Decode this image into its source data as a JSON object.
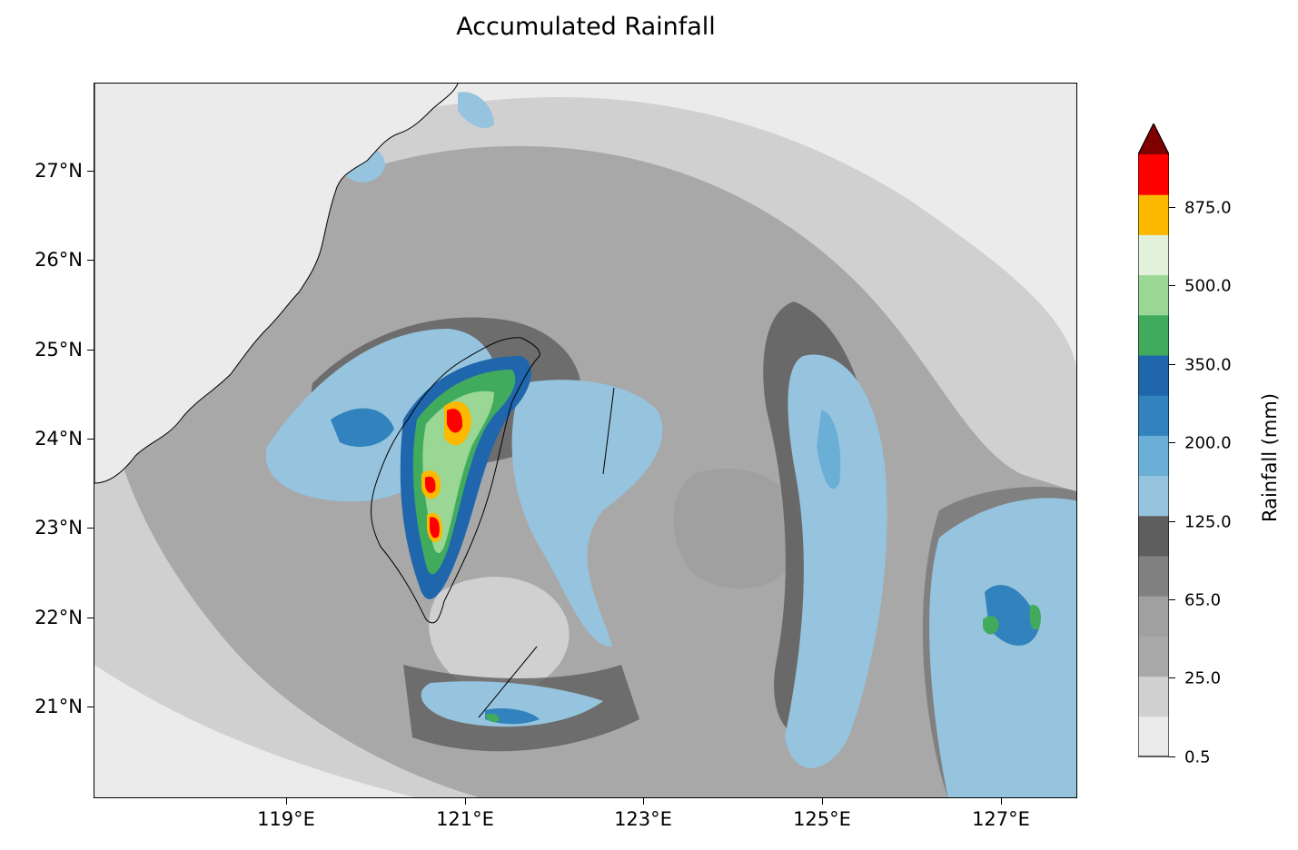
{
  "title": "Accumulated Rainfall",
  "map": {
    "lat_labels": [
      "27°N",
      "26°N",
      "25°N",
      "24°N",
      "23°N",
      "22°N",
      "21°N"
    ],
    "lon_labels": [
      "119°E",
      "121°E",
      "123°E",
      "125°E",
      "127°E"
    ],
    "lat_range": [
      20.0,
      28.0
    ],
    "lon_range": [
      117.0,
      128.0
    ],
    "features": [
      "china-coastline",
      "taiwan-outline",
      "rainfall-contours"
    ]
  },
  "colorbar": {
    "label": "Rainfall (mm)",
    "tick_labels": [
      "0.5",
      "25.0",
      "65.0",
      "125.0",
      "200.0",
      "350.0",
      "500.0",
      "875.0"
    ],
    "extend": "max",
    "colors": [
      "#ebebeb",
      "#d0d0d0",
      "#a8a8a8",
      "#a0a0a0",
      "#808080",
      "#5e5e5e",
      "#96c4de",
      "#6baed6",
      "#3182bd",
      "#1f66ad",
      "#41ab5d",
      "#9ad795",
      "#e2f1da",
      "#fdb900",
      "#ff0000",
      "#800000"
    ]
  }
}
